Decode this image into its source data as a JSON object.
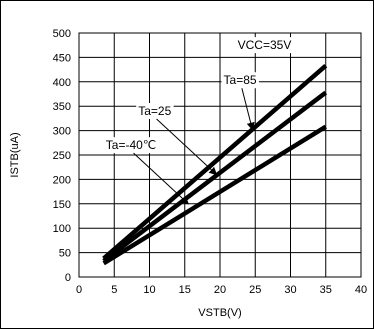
{
  "chart_data": {
    "type": "line",
    "title": "",
    "xlabel": "VSTB(V)",
    "ylabel": "ISTB(uA)",
    "xlim": [
      0,
      40
    ],
    "ylim": [
      0,
      500
    ],
    "xticks": [
      0,
      5,
      10,
      15,
      20,
      25,
      30,
      35,
      40
    ],
    "yticks": [
      0,
      50,
      100,
      150,
      200,
      250,
      300,
      350,
      400,
      450,
      500
    ],
    "grid": true,
    "series": [
      {
        "name": "Ta=85",
        "color": "#000000",
        "x": [
          3.5,
          35
        ],
        "y": [
          38,
          433
        ]
      },
      {
        "name": "Ta=25",
        "color": "#000000",
        "x": [
          3.5,
          35
        ],
        "y": [
          33,
          378
        ]
      },
      {
        "name": "Ta=-40℃",
        "color": "#000000",
        "x": [
          3.5,
          35
        ],
        "y": [
          28,
          308
        ]
      }
    ],
    "annotations": [
      {
        "text": "VCC=35V",
        "x": 22.5,
        "y": 467
      },
      {
        "text": "Ta=85",
        "x": 20.5,
        "y": 395,
        "arrow_to": [
          24.6,
          302
        ]
      },
      {
        "text": "Ta=25",
        "x": 8.4,
        "y": 332,
        "arrow_to": [
          19.5,
          210
        ]
      },
      {
        "text": "Ta=-40℃",
        "x": 3.8,
        "y": 262,
        "arrow_to": [
          15.5,
          150
        ]
      }
    ]
  }
}
